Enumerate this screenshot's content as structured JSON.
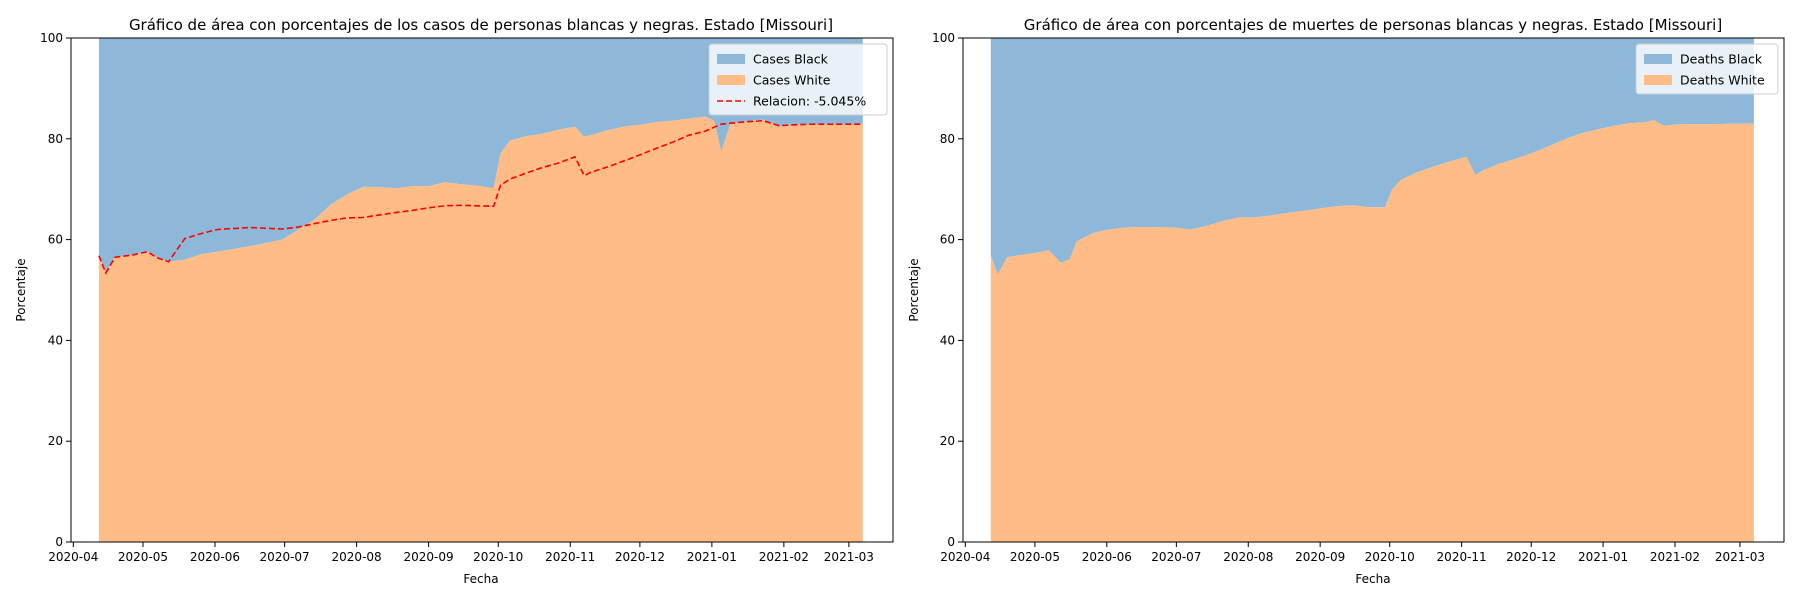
{
  "colors": {
    "black_area": "#8db8d9",
    "white_area": "#ffbc86",
    "ratio_line": "#ff0000",
    "axis": "#000000"
  },
  "chart_data": [
    {
      "type": "area",
      "title": "Gráfico de área con porcentajes de los casos de personas blancas y negras. Estado [Missouri]",
      "xlabel": "Fecha",
      "ylabel": "Porcentaje",
      "ylim": [
        0,
        100
      ],
      "xlim": [
        "2020-03-31",
        "2021-03-20"
      ],
      "yticks": [
        0,
        20,
        40,
        60,
        80,
        100
      ],
      "xticks": [
        "2020-04",
        "2020-05",
        "2020-06",
        "2020-07",
        "2020-08",
        "2020-09",
        "2020-10",
        "2020-11",
        "2020-12",
        "2021-01",
        "2021-02",
        "2021-03"
      ],
      "legend_position": "top-right",
      "x": [
        "2020-04-12",
        "2020-04-15",
        "2020-04-19",
        "2020-04-26",
        "2020-05-03",
        "2020-05-07",
        "2020-05-12",
        "2020-05-19",
        "2020-05-26",
        "2020-06-02",
        "2020-06-16",
        "2020-06-30",
        "2020-07-07",
        "2020-07-14",
        "2020-07-21",
        "2020-07-28",
        "2020-08-04",
        "2020-08-11",
        "2020-08-18",
        "2020-08-25",
        "2020-09-01",
        "2020-09-08",
        "2020-09-15",
        "2020-09-22",
        "2020-09-29",
        "2020-10-02",
        "2020-10-06",
        "2020-10-13",
        "2020-10-20",
        "2020-10-27",
        "2020-11-03",
        "2020-11-07",
        "2020-11-10",
        "2020-11-17",
        "2020-11-24",
        "2020-12-01",
        "2020-12-08",
        "2020-12-15",
        "2020-12-22",
        "2020-12-29",
        "2021-01-02",
        "2021-01-05",
        "2021-01-09",
        "2021-01-16",
        "2021-01-23",
        "2021-01-30",
        "2021-02-06",
        "2021-02-13",
        "2021-02-20",
        "2021-02-27",
        "2021-03-07"
      ],
      "series": [
        {
          "name": "Cases Black",
          "values": [
            43.2,
            46.6,
            43.5,
            43.1,
            42.4,
            43.6,
            44.4,
            44.0,
            42.9,
            42.4,
            41.3,
            40.0,
            38.0,
            36.0,
            33.0,
            31.0,
            29.5,
            29.6,
            29.8,
            29.4,
            29.4,
            28.6,
            29.0,
            29.3,
            29.8,
            22.9,
            20.4,
            19.5,
            19.0,
            18.2,
            17.6,
            19.6,
            19.3,
            18.3,
            17.6,
            17.2,
            16.7,
            16.4,
            16.0,
            15.6,
            16.4,
            22.5,
            17.0,
            16.5,
            16.2,
            17.6,
            17.2,
            17.2,
            17.1,
            17.2,
            17.1
          ]
        },
        {
          "name": "Cases White",
          "values": [
            56.8,
            53.4,
            56.5,
            56.9,
            57.6,
            56.4,
            55.6,
            56.0,
            57.1,
            57.6,
            58.7,
            60.0,
            62.0,
            64.0,
            67.0,
            69.0,
            70.5,
            70.4,
            70.2,
            70.6,
            70.6,
            71.4,
            71.0,
            70.7,
            70.2,
            77.1,
            79.6,
            80.5,
            81.0,
            81.8,
            82.4,
            80.4,
            80.7,
            81.7,
            82.4,
            82.8,
            83.3,
            83.6,
            84.0,
            84.4,
            83.6,
            77.5,
            83.0,
            83.5,
            83.8,
            82.4,
            82.8,
            82.8,
            82.9,
            82.8,
            82.9
          ]
        },
        {
          "name": "Relacion: -5.045%",
          "values": [
            56.8,
            53.4,
            56.5,
            56.9,
            57.6,
            56.4,
            55.6,
            60.2,
            61.2,
            62.0,
            62.4,
            62.1,
            62.5,
            63.2,
            63.8,
            64.3,
            64.4,
            64.9,
            65.4,
            65.8,
            66.3,
            66.7,
            66.8,
            66.7,
            66.6,
            70.8,
            72.0,
            73.2,
            74.3,
            75.2,
            76.4,
            72.7,
            73.4,
            74.4,
            75.6,
            76.8,
            78.1,
            79.3,
            80.7,
            81.5,
            82.3,
            82.9,
            83.1,
            83.4,
            83.6,
            82.6,
            82.8,
            82.9,
            82.9,
            82.9,
            82.9
          ]
        }
      ]
    },
    {
      "type": "area",
      "title": "Gráfico de área con porcentajes de muertes de personas blancas y negras. Estado [Missouri]",
      "xlabel": "Fecha",
      "ylabel": "Porcentaje",
      "ylim": [
        0,
        100
      ],
      "xlim": [
        "2020-03-31",
        "2021-03-20"
      ],
      "yticks": [
        0,
        20,
        40,
        60,
        80,
        100
      ],
      "xticks": [
        "2020-04",
        "2020-05",
        "2020-06",
        "2020-07",
        "2020-08",
        "2020-09",
        "2020-10",
        "2020-11",
        "2020-12",
        "2021-01",
        "2021-02",
        "2021-03"
      ],
      "legend_position": "top-right",
      "x": [
        "2020-04-12",
        "2020-04-15",
        "2020-04-19",
        "2020-04-26",
        "2020-05-03",
        "2020-05-07",
        "2020-05-12",
        "2020-05-16",
        "2020-05-19",
        "2020-05-26",
        "2020-06-02",
        "2020-06-09",
        "2020-06-16",
        "2020-06-30",
        "2020-07-07",
        "2020-07-14",
        "2020-07-21",
        "2020-07-28",
        "2020-08-04",
        "2020-08-11",
        "2020-08-18",
        "2020-08-25",
        "2020-09-01",
        "2020-09-08",
        "2020-09-15",
        "2020-09-22",
        "2020-09-29",
        "2020-10-02",
        "2020-10-06",
        "2020-10-13",
        "2020-10-20",
        "2020-10-27",
        "2020-11-03",
        "2020-11-07",
        "2020-11-10",
        "2020-11-17",
        "2020-11-24",
        "2020-12-01",
        "2020-12-08",
        "2020-12-15",
        "2020-12-22",
        "2020-12-29",
        "2021-01-05",
        "2021-01-12",
        "2021-01-19",
        "2021-01-23",
        "2021-01-27",
        "2021-02-03",
        "2021-02-10",
        "2021-02-17",
        "2021-02-24",
        "2021-03-07"
      ],
      "series": [
        {
          "name": "Deaths Black",
          "values": [
            43.2,
            46.9,
            43.5,
            43.0,
            42.5,
            42.1,
            44.6,
            43.9,
            40.4,
            38.7,
            38.0,
            37.6,
            37.5,
            37.6,
            38.0,
            37.3,
            36.3,
            35.6,
            35.6,
            35.2,
            34.7,
            34.3,
            33.8,
            33.4,
            33.2,
            33.6,
            33.6,
            30.0,
            28.1,
            26.6,
            25.5,
            24.5,
            23.6,
            27.2,
            26.3,
            25.0,
            24.0,
            22.9,
            21.6,
            20.2,
            19.0,
            18.2,
            17.5,
            16.9,
            16.7,
            16.3,
            17.4,
            17.1,
            17.1,
            17.1,
            17.0,
            17.0
          ]
        },
        {
          "name": "Deaths White",
          "values": [
            56.8,
            53.1,
            56.5,
            57.0,
            57.5,
            57.9,
            55.4,
            56.1,
            59.6,
            61.3,
            62.0,
            62.4,
            62.5,
            62.4,
            62.0,
            62.7,
            63.7,
            64.4,
            64.4,
            64.8,
            65.3,
            65.7,
            66.2,
            66.6,
            66.8,
            66.4,
            66.4,
            70.0,
            71.9,
            73.4,
            74.5,
            75.5,
            76.4,
            72.8,
            73.7,
            75.0,
            76.0,
            77.1,
            78.4,
            79.8,
            81.0,
            81.8,
            82.5,
            83.1,
            83.3,
            83.7,
            82.6,
            82.9,
            82.9,
            82.9,
            83.0,
            83.0
          ]
        }
      ]
    }
  ]
}
